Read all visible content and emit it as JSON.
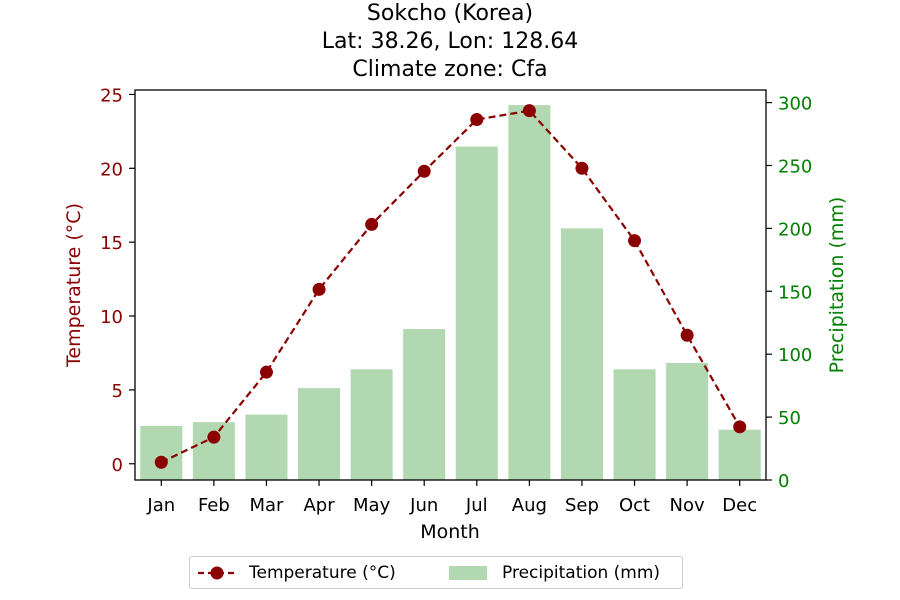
{
  "title": {
    "line1": "Sokcho (Korea)",
    "line2": "Lat: 38.26, Lon: 128.64",
    "line3": "Climate zone: Cfa"
  },
  "legend": {
    "temperature": "Temperature (°C)",
    "precipitation": "Precipitation (mm)"
  },
  "colors": {
    "temperature": "#8b0000",
    "precipitation": "#008000",
    "bars": "#b2d8b2"
  },
  "chart_data": {
    "type": "bar+line",
    "xlabel": "Month",
    "categories": [
      "Jan",
      "Feb",
      "Mar",
      "Apr",
      "May",
      "Jun",
      "Jul",
      "Aug",
      "Sep",
      "Oct",
      "Nov",
      "Dec"
    ],
    "series": [
      {
        "name": "Temperature (°C)",
        "type": "line",
        "axis": "left",
        "values": [
          0.1,
          1.8,
          6.2,
          11.8,
          16.2,
          19.8,
          23.3,
          23.9,
          20.0,
          15.1,
          8.7,
          2.5
        ]
      },
      {
        "name": "Precipitation (mm)",
        "type": "bar",
        "axis": "right",
        "values": [
          43,
          46,
          52,
          73,
          88,
          120,
          265,
          298,
          200,
          88,
          93,
          40
        ]
      }
    ],
    "y_left": {
      "label": "Temperature (°C)",
      "range": [
        -1.1,
        25.3
      ],
      "ticks": [
        0,
        5,
        10,
        15,
        20,
        25
      ]
    },
    "y_right": {
      "label": "Precipitation (mm)",
      "range": [
        0,
        310
      ],
      "ticks": [
        0,
        50,
        100,
        150,
        200,
        250,
        300
      ]
    },
    "grid": false,
    "legend_position": "bottom-center"
  }
}
